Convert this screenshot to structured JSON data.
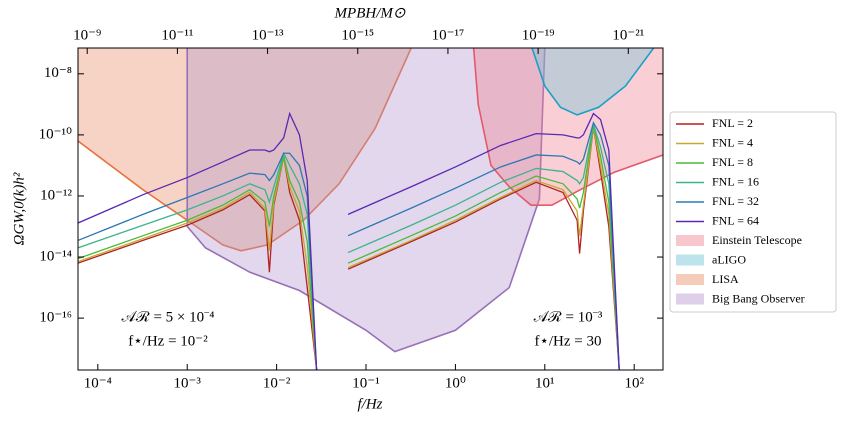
{
  "chart_data": {
    "type": "line",
    "xscale": "log",
    "yscale": "log",
    "xlabel": "f/Hz",
    "ylabel": "ΩGW,0(k)h²",
    "x2label": "MPBH/M⊙",
    "xlim": [
      6e-05,
      210
    ],
    "ylim": [
      2e-18,
      7e-08
    ],
    "x2lim": [
      1.6e-09,
      1.7e-22
    ],
    "xticks": [
      {
        "value": 0.0001,
        "label": "10⁻⁴"
      },
      {
        "value": 0.001,
        "label": "10⁻³"
      },
      {
        "value": 0.01,
        "label": "10⁻²"
      },
      {
        "value": 0.1,
        "label": "10⁻¹"
      },
      {
        "value": 1,
        "label": "10⁰"
      },
      {
        "value": 10,
        "label": "10¹"
      },
      {
        "value": 100,
        "label": "10²"
      }
    ],
    "yticks": [
      {
        "value": 1e-08,
        "label": "10⁻⁸"
      },
      {
        "value": 1e-10,
        "label": "10⁻¹⁰"
      },
      {
        "value": 1e-12,
        "label": "10⁻¹²"
      },
      {
        "value": 1e-14,
        "label": "10⁻¹⁴"
      },
      {
        "value": 1e-16,
        "label": "10⁻¹⁶"
      }
    ],
    "x2ticks": [
      {
        "value": 1e-09,
        "label": "10⁻⁹"
      },
      {
        "value": 1e-11,
        "label": "10⁻¹¹"
      },
      {
        "value": 1e-13,
        "label": "10⁻¹³"
      },
      {
        "value": 1e-15,
        "label": "10⁻¹⁵"
      },
      {
        "value": 1e-17,
        "label": "10⁻¹⁷"
      },
      {
        "value": 1e-19,
        "label": "10⁻¹⁹"
      },
      {
        "value": 1e-21,
        "label": "10⁻²¹"
      }
    ],
    "legend": "outside right",
    "annotations": [
      "𝒜ℛ = 5 × 10⁻⁴",
      "f⋆/Hz = 10⁻²",
      "𝒜ℛ = 10⁻³",
      "f⋆/Hz = 30"
    ],
    "x": [
      6e-05,
      0.00032,
      0.001,
      0.0025,
      0.005,
      0.0074,
      0.0083,
      0.0093,
      0.012,
      0.014,
      0.018,
      0.022,
      0.028,
      0.045,
      0.063,
      0.32,
      1,
      3.2,
      8,
      16,
      23,
      24.5,
      27,
      35,
      42,
      52,
      68
    ],
    "series": [
      {
        "name": "FNL = 2",
        "color": "#b22222",
        "values": [
          6.3e-15,
          3.5e-14,
          1.1e-13,
          3.5e-13,
          1.1e-12,
          3.2e-13,
          3.2e-15,
          5e-13,
          2e-11,
          1.3e-12,
          1.6e-13,
          1e-15,
          2e-18,
          null,
          4e-15,
          3.2e-14,
          1.4e-13,
          8e-13,
          2.8e-12,
          1.3e-12,
          1.6e-13,
          1.3e-14,
          3.2e-13,
          1.8e-10,
          6.3e-12,
          1e-13,
          2e-18
        ]
      },
      {
        "name": "FNL = 4",
        "color": "#c8a832",
        "values": [
          7.1e-15,
          4e-14,
          1.3e-13,
          4e-13,
          1.3e-12,
          4e-13,
          1.6e-14,
          6.3e-13,
          2e-11,
          2e-12,
          3.2e-13,
          5e-15,
          2e-18,
          null,
          4.5e-15,
          3.5e-14,
          1.6e-13,
          8.9e-13,
          3.2e-12,
          1.6e-12,
          3.2e-13,
          5e-14,
          5e-13,
          1.8e-10,
          1e-11,
          2.5e-13,
          2e-18
        ]
      },
      {
        "name": "FNL = 8",
        "color": "#4cb83c",
        "values": [
          8.9e-15,
          5e-14,
          1.6e-13,
          5e-13,
          1.6e-12,
          6.3e-13,
          1e-13,
          1e-12,
          2e-11,
          3.2e-12,
          6.3e-13,
          3.2e-14,
          2e-18,
          null,
          6.3e-15,
          5e-14,
          2.2e-13,
          1.3e-12,
          4.5e-12,
          2.5e-12,
          8e-13,
          4e-13,
          1.3e-12,
          2e-10,
          2e-11,
          6.3e-13,
          2e-18
        ]
      },
      {
        "name": "FNL = 16",
        "color": "#3cb48c",
        "values": [
          2e-14,
          1.1e-13,
          3.5e-13,
          1e-12,
          2.5e-12,
          1.6e-12,
          6.3e-13,
          2e-12,
          2.5e-11,
          1e-11,
          2.5e-12,
          2.5e-13,
          2e-18,
          null,
          1.4e-14,
          1.1e-13,
          5e-13,
          2.8e-12,
          8e-12,
          6.3e-12,
          3.2e-12,
          2.5e-12,
          4e-12,
          2.2e-10,
          4e-11,
          2.5e-12,
          2e-18
        ]
      },
      {
        "name": "FNL = 32",
        "color": "#2c78b4",
        "values": [
          3.5e-14,
          2.5e-13,
          8.9e-13,
          2.5e-12,
          5.6e-12,
          5e-12,
          3.2e-12,
          5e-12,
          2.5e-11,
          2.5e-11,
          1e-11,
          1e-12,
          2e-18,
          null,
          5e-14,
          4e-13,
          1.8e-12,
          8.9e-12,
          2.2e-11,
          2e-11,
          1.3e-11,
          1.1e-11,
          1.6e-11,
          2.5e-10,
          1e-10,
          1e-11,
          2e-18
        ]
      },
      {
        "name": "FNL = 64",
        "color": "#5a28b4",
        "values": [
          1.3e-13,
          1.1e-12,
          4e-12,
          1.3e-11,
          3.2e-11,
          3.2e-11,
          2.8e-11,
          3.2e-11,
          8e-11,
          5e-10,
          1e-10,
          3.2e-12,
          2e-18,
          null,
          2.5e-13,
          2e-12,
          8.9e-12,
          4.5e-11,
          1.1e-10,
          1e-10,
          8e-11,
          8e-11,
          1e-10,
          5e-10,
          3.2e-10,
          3.2e-11,
          2e-18
        ]
      }
    ],
    "regions": [
      {
        "name": "Einstein Telescope",
        "color": "#f08090",
        "edge": "#e35a6c",
        "x": [
          1.6,
          1.8,
          2.5,
          4,
          7,
          12,
          25,
          60,
          210
        ],
        "values": [
          7e-08,
          1e-09,
          1e-11,
          2e-12,
          5e-13,
          5e-13,
          1.6e-12,
          6e-12,
          2.2e-11
        ]
      },
      {
        "name": "aLIGO",
        "color": "#6cc4d8",
        "edge": "#1aa0c8",
        "x": [
          7.2,
          10,
          15,
          23,
          40,
          80,
          165
        ],
        "values": [
          7e-08,
          4e-09,
          8e-10,
          4.5e-10,
          8e-10,
          4e-09,
          7e-08
        ]
      },
      {
        "name": "LISA",
        "color": "#e88c64",
        "edge": "#e8703c",
        "x": [
          6e-05,
          0.00032,
          0.001,
          0.0025,
          0.004,
          0.0079,
          0.02,
          0.05,
          0.126,
          0.32
        ],
        "values": [
          6.3e-11,
          1.6e-12,
          1.6e-13,
          2.5e-14,
          1.6e-14,
          2.5e-14,
          1.6e-13,
          2.5e-12,
          1.6e-10,
          7e-08
        ]
      },
      {
        "name": "Big Bang Observer",
        "color": "#b496cc",
        "edge": "#9870b8",
        "x": [
          0.001,
          0.001,
          0.0016,
          0.005,
          0.018,
          0.1,
          0.21,
          1,
          4,
          8.7,
          10
        ],
        "values": [
          7e-08,
          1e-13,
          2e-14,
          3.2e-15,
          8e-16,
          4e-17,
          8e-18,
          4e-17,
          1e-15,
          8e-13,
          7e-08
        ]
      }
    ]
  }
}
